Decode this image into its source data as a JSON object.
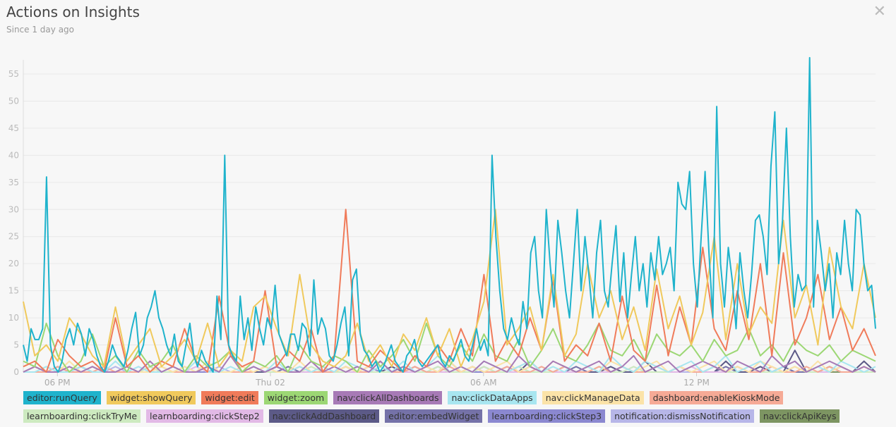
{
  "header": {
    "title": "Actions on Insights",
    "subtitle": "Since 1 day ago"
  },
  "chart_data": {
    "type": "line",
    "title": "Actions on Insights",
    "ylim": [
      0,
      58
    ],
    "yticks": [
      0,
      5,
      10,
      15,
      20,
      25,
      30,
      35,
      40,
      45,
      50,
      55
    ],
    "xticks": [
      {
        "label": "06 PM",
        "pos": 0.04
      },
      {
        "label": "Thu 02",
        "pos": 0.29
      },
      {
        "label": "06 AM",
        "pos": 0.54
      },
      {
        "label": "12 PM",
        "pos": 0.79
      }
    ],
    "series": [
      {
        "name": "editor:runQuery",
        "color": "#1fb3cc",
        "values": [
          5,
          2,
          8,
          6,
          6,
          8,
          36,
          5,
          1,
          0,
          2,
          6,
          8,
          5,
          9,
          7,
          3,
          8,
          6,
          3,
          1,
          0,
          2,
          5,
          3,
          2,
          1,
          4,
          8,
          11,
          3,
          5,
          10,
          12,
          15,
          10,
          8,
          5,
          3,
          7,
          2,
          1,
          5,
          9,
          3,
          1,
          4,
          2,
          1,
          0,
          14,
          6,
          40,
          5,
          3,
          2,
          14,
          6,
          10,
          4,
          12,
          8,
          5,
          10,
          8,
          16,
          7,
          5,
          3,
          7,
          7,
          4,
          9,
          8,
          3,
          17,
          7,
          10,
          8,
          3,
          2,
          5,
          9,
          12,
          3,
          17,
          19,
          7,
          4,
          3,
          1,
          2,
          0,
          1,
          3,
          5,
          2,
          1,
          0,
          3,
          4,
          6,
          2,
          1,
          2,
          3,
          4,
          5,
          2,
          1,
          3,
          2,
          4,
          6,
          3,
          2,
          5,
          8,
          4,
          6,
          3,
          40,
          25,
          15,
          8,
          6,
          10,
          7,
          5,
          13,
          8,
          22,
          25,
          15,
          10,
          30,
          20,
          12,
          28,
          22,
          15,
          10,
          20,
          30,
          15,
          25,
          18,
          10,
          22,
          28,
          15,
          12,
          20,
          27,
          13,
          22,
          10,
          18,
          25,
          15,
          20,
          12,
          22,
          17,
          25,
          18,
          20,
          23,
          15,
          35,
          31,
          30,
          37,
          20,
          12,
          25,
          37,
          22,
          10,
          49,
          20,
          12,
          23,
          17,
          8,
          22,
          15,
          10,
          18,
          28,
          29,
          25,
          18,
          38,
          48,
          20,
          28,
          45,
          25,
          12,
          18,
          15,
          16,
          58,
          12,
          28,
          22,
          15,
          20,
          10,
          22,
          18,
          28,
          20,
          15,
          30,
          29,
          20,
          15,
          16,
          8
        ]
      },
      {
        "name": "widget:showQuery",
        "color": "#f0c95c",
        "values": [
          13,
          3,
          5,
          2,
          10,
          7,
          3,
          1,
          12,
          2,
          5,
          8,
          1,
          3,
          6,
          2,
          9,
          1,
          4,
          2,
          12,
          14,
          8,
          3,
          18,
          5,
          2,
          1,
          3,
          9,
          2,
          5,
          1,
          7,
          4,
          10,
          3,
          8,
          1,
          6,
          13,
          30,
          5,
          8,
          12,
          4,
          18,
          3,
          7,
          20,
          10,
          15,
          6,
          12,
          4,
          19,
          8,
          14,
          5,
          11,
          25,
          6,
          20,
          7,
          12,
          9,
          28,
          10,
          16,
          5,
          23,
          12,
          8,
          20,
          10
        ]
      },
      {
        "name": "widget:edit",
        "color": "#f07b5a",
        "values": [
          1,
          2,
          0,
          6,
          3,
          1,
          2,
          0,
          10,
          1,
          3,
          0,
          2,
          1,
          8,
          2,
          0,
          14,
          3,
          1,
          2,
          15,
          1,
          4,
          2,
          8,
          0,
          3,
          30,
          2,
          1,
          4,
          2,
          0,
          3,
          1,
          5,
          2,
          8,
          3,
          18,
          2,
          6,
          3,
          10,
          4,
          17,
          2,
          5,
          3,
          9,
          2,
          14,
          4,
          2,
          16,
          3,
          12,
          5,
          23,
          8,
          4,
          15,
          6,
          20,
          3,
          22,
          5,
          10,
          18,
          6,
          12,
          4,
          8,
          3
        ]
      },
      {
        "name": "widget:zoom",
        "color": "#9cd774",
        "values": [
          2,
          1,
          9,
          3,
          0,
          2,
          7,
          1,
          3,
          0,
          4,
          1,
          2,
          5,
          0,
          3,
          1,
          2,
          4,
          0,
          2,
          1,
          3,
          0,
          5,
          2,
          1,
          3,
          2,
          0,
          4,
          1,
          3,
          6,
          2,
          9,
          3,
          1,
          5,
          2,
          7,
          3,
          2,
          6,
          1,
          4,
          8,
          3,
          2,
          5,
          9,
          4,
          3,
          6,
          2,
          7,
          4,
          3,
          5,
          2,
          6,
          3,
          4,
          8,
          3,
          5,
          2,
          6,
          4,
          3,
          5,
          2,
          4,
          3,
          2
        ]
      },
      {
        "name": "nav:clickAllDashboards",
        "color": "#a77ab6",
        "values": [
          0,
          1,
          0,
          0,
          1,
          0,
          1,
          0,
          0,
          1,
          0,
          2,
          0,
          1,
          0,
          0,
          1,
          0,
          3,
          0,
          1,
          0,
          1,
          0,
          0,
          2,
          0,
          1,
          0,
          1,
          0,
          2,
          0,
          1,
          0,
          1,
          2,
          0,
          1,
          0,
          2,
          1,
          0,
          3,
          1,
          0,
          2,
          1,
          0,
          1,
          2,
          0,
          1,
          3,
          0,
          1,
          2,
          0,
          1,
          2,
          1,
          0,
          2,
          1,
          0,
          3,
          1,
          2,
          0,
          1,
          2,
          1,
          0,
          1,
          0
        ]
      },
      {
        "name": "nav:clickDataApps",
        "color": "#a8e6f0",
        "values": [
          0,
          0,
          1,
          0,
          0,
          1,
          0,
          0,
          2,
          0,
          1,
          0,
          0,
          1,
          0,
          2,
          0,
          0,
          1,
          0,
          1,
          0,
          2,
          0,
          1,
          0,
          1,
          0,
          2,
          1,
          0,
          1,
          0,
          2,
          0,
          1,
          3,
          0,
          1,
          0,
          2,
          1,
          0,
          1,
          2,
          0,
          1,
          0,
          2,
          1,
          0,
          3,
          1,
          0,
          2,
          1,
          0,
          1,
          2,
          0,
          1,
          3,
          0,
          1,
          2,
          0,
          1,
          2,
          0,
          1,
          0,
          2,
          1,
          0,
          1
        ]
      },
      {
        "name": "nav:clickManageData",
        "color": "#fbe3a8",
        "values": [
          0,
          1,
          0,
          0,
          2,
          0,
          1,
          0,
          0,
          1,
          0,
          0,
          1,
          0,
          1,
          0,
          2,
          0,
          0,
          1,
          0,
          1,
          0,
          0,
          2,
          0,
          1,
          0,
          1,
          0,
          1,
          2,
          0,
          1,
          0,
          1,
          0,
          2,
          0,
          1,
          0,
          1,
          2,
          0,
          1,
          0,
          2,
          1,
          0,
          1,
          0,
          2,
          1,
          0,
          1,
          2,
          0,
          1,
          0,
          1,
          2,
          0,
          1,
          0,
          2,
          1,
          0,
          1,
          0,
          2,
          0,
          1,
          0,
          1,
          0
        ]
      },
      {
        "name": "dashboard:enableKioskMode",
        "color": "#f6aa96",
        "values": [
          0,
          0,
          0,
          1,
          0,
          0,
          0,
          1,
          0,
          0,
          0,
          0,
          1,
          0,
          0,
          0,
          1,
          0,
          0,
          0,
          0,
          1,
          0,
          0,
          1,
          0,
          0,
          0,
          1,
          0,
          0,
          1,
          0,
          0,
          1,
          0,
          0,
          1,
          0,
          1,
          0,
          0,
          1,
          0,
          0,
          1,
          0,
          1,
          0,
          0,
          1,
          0,
          1,
          0,
          0,
          1,
          0,
          1,
          0,
          0,
          1,
          0,
          1,
          0,
          0,
          1,
          0,
          0,
          1,
          0,
          1,
          0,
          0,
          1,
          0
        ]
      },
      {
        "name": "learnboarding:clickTryMe",
        "color": "#cdeac0",
        "values": [
          0,
          0,
          1,
          0,
          0,
          0,
          0,
          1,
          0,
          0,
          0,
          1,
          0,
          0,
          0,
          0,
          1,
          0,
          0,
          0,
          1,
          0,
          0,
          0,
          0,
          1,
          0,
          0,
          0,
          1,
          0,
          0,
          0,
          1,
          0,
          0,
          1,
          0,
          0,
          0,
          1,
          0,
          0,
          1,
          0,
          0,
          0,
          1,
          0,
          0,
          1,
          0,
          0,
          1,
          0,
          0,
          0,
          1,
          0,
          0,
          1,
          0,
          0,
          1,
          0,
          0,
          0,
          1,
          0,
          0,
          1,
          0,
          0,
          0,
          0
        ]
      },
      {
        "name": "learnboarding:clickStep2",
        "color": "#e2b9e6",
        "values": [
          0,
          0,
          0,
          0,
          1,
          0,
          0,
          0,
          0,
          0,
          1,
          0,
          0,
          0,
          0,
          1,
          0,
          0,
          0,
          0,
          0,
          1,
          0,
          0,
          0,
          0,
          1,
          0,
          0,
          0,
          0,
          1,
          0,
          0,
          0,
          1,
          0,
          0,
          0,
          0,
          1,
          0,
          0,
          0,
          1,
          0,
          0,
          0,
          0,
          1,
          0,
          0,
          0,
          1,
          0,
          0,
          0,
          0,
          1,
          0,
          0,
          0,
          1,
          0,
          0,
          0,
          0,
          1,
          0,
          0,
          0,
          1,
          0,
          0,
          0
        ]
      },
      {
        "name": "nav:clickAddDashboard",
        "color": "#5c5a87",
        "values": [
          0,
          1,
          0,
          0,
          0,
          1,
          0,
          0,
          0,
          0,
          0,
          1,
          0,
          0,
          0,
          0,
          1,
          0,
          0,
          0,
          0,
          0,
          1,
          0,
          0,
          0,
          0,
          0,
          1,
          0,
          0,
          0,
          1,
          0,
          0,
          0,
          0,
          2,
          0,
          0,
          1,
          0,
          0,
          0,
          2,
          0,
          0,
          1,
          0,
          0,
          0,
          1,
          0,
          0,
          2,
          0,
          0,
          1,
          0,
          0,
          0,
          2,
          0,
          0,
          1,
          0,
          0,
          4,
          0,
          0,
          1,
          0,
          0,
          2,
          0
        ]
      },
      {
        "name": "editor:embedWidget",
        "color": "#7572a8",
        "values": [
          0,
          0,
          0,
          1,
          0,
          0,
          0,
          0,
          0,
          1,
          0,
          0,
          0,
          0,
          0,
          0,
          1,
          0,
          0,
          0,
          0,
          0,
          0,
          1,
          0,
          0,
          0,
          0,
          0,
          1,
          0,
          0,
          0,
          0,
          1,
          0,
          0,
          0,
          0,
          1,
          0,
          0,
          0,
          1,
          0,
          0,
          0,
          0,
          1,
          0,
          0,
          0,
          1,
          0,
          0,
          0,
          0,
          1,
          0,
          0,
          0,
          1,
          0,
          0,
          0,
          0,
          1,
          0,
          0,
          0,
          1,
          0,
          0,
          0,
          0
        ]
      },
      {
        "name": "learnboarding:clickStep3",
        "color": "#8b88d0",
        "values": [
          0,
          0,
          0,
          0,
          0,
          0,
          1,
          0,
          0,
          0,
          0,
          0,
          0,
          0,
          1,
          0,
          0,
          0,
          0,
          0,
          0,
          0,
          1,
          0,
          0,
          0,
          0,
          0,
          0,
          0,
          1,
          0,
          0,
          0,
          0,
          0,
          1,
          0,
          0,
          0,
          0,
          0,
          1,
          0,
          0,
          0,
          0,
          1,
          0,
          0,
          0,
          0,
          1,
          0,
          0,
          0,
          0,
          1,
          0,
          0,
          0,
          0,
          1,
          0,
          0,
          0,
          1,
          0,
          0,
          0,
          0,
          1,
          0,
          0,
          0
        ]
      },
      {
        "name": "notification:dismissNotification",
        "color": "#b7b6e8",
        "values": [
          0,
          0,
          0,
          0,
          0,
          0,
          0,
          0,
          1,
          0,
          0,
          0,
          0,
          0,
          0,
          0,
          0,
          1,
          0,
          0,
          0,
          0,
          0,
          0,
          0,
          0,
          1,
          0,
          0,
          0,
          0,
          0,
          0,
          1,
          0,
          0,
          0,
          0,
          0,
          1,
          0,
          0,
          0,
          0,
          0,
          1,
          0,
          0,
          0,
          0,
          1,
          0,
          0,
          0,
          0,
          1,
          0,
          0,
          0,
          0,
          1,
          0,
          0,
          0,
          0,
          1,
          0,
          0,
          0,
          0,
          1,
          0,
          0,
          0,
          0
        ]
      },
      {
        "name": "nav:clickApiKeys",
        "color": "#7d9562",
        "values": [
          0,
          0,
          0,
          0,
          0,
          0,
          0,
          0,
          0,
          0,
          0,
          0,
          0,
          0,
          0,
          0,
          0,
          0,
          0,
          0,
          0,
          0,
          0,
          0,
          0,
          0,
          0,
          0,
          0,
          0,
          0,
          0,
          0,
          0,
          0,
          0,
          0,
          0,
          0,
          0,
          0,
          0,
          0,
          0,
          0,
          0,
          0,
          0,
          0,
          0,
          0,
          0,
          0,
          0,
          0,
          0,
          0,
          0,
          0,
          0,
          0,
          0,
          0,
          0,
          0,
          0,
          0,
          0,
          0,
          0,
          0,
          0,
          0,
          0,
          0
        ]
      }
    ]
  }
}
